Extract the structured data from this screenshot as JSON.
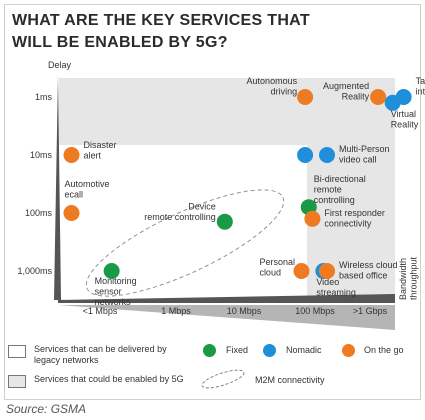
{
  "title": "WHAT ARE THE KEY SERVICES THAT WILL BE ENABLED BY 5G?",
  "source": "Source: GSMA",
  "colors": {
    "fixed": "#1a9a46",
    "nomadic": "#1f8fdc",
    "on_the_go": "#ee7a22",
    "legacy_region": "#ffffff",
    "new_region": "#e6e6e6",
    "axis": "#555555"
  },
  "legend": {
    "legacy": "Services that can be delivered by legacy networks",
    "new": "Services that could be enabled by 5G",
    "fixed": "Fixed",
    "nomadic": "Nomadic",
    "on_the_go": "On the go",
    "m2m": "M2M connectivity"
  },
  "chart_data": {
    "type": "scatter",
    "title": "WHAT ARE THE KEY SERVICES THAT WILL BE ENABLED BY 5G?",
    "xlabel": "Bandwidth throughput",
    "ylabel": "Delay",
    "x_categories": [
      "<1 Mbps",
      "1 Mbps",
      "10 Mbps",
      "100 Mbps",
      ">1 Gbps"
    ],
    "y_categories": [
      "1ms",
      "10ms",
      "100ms",
      "1,000ms"
    ],
    "grid": false,
    "legend_position": "bottom",
    "points": [
      {
        "label": "Autonomous driving",
        "type": "on_the_go",
        "x": 2.7,
        "y": 0.0
      },
      {
        "label": "Augmented Reality",
        "type": "on_the_go",
        "x": 3.7,
        "y": 0.0
      },
      {
        "label": "Tactile internet",
        "type": "nomadic",
        "x": 4.05,
        "y": 0.0
      },
      {
        "label": "Virtual Reality",
        "type": "nomadic",
        "x": 3.9,
        "y": 0.1
      },
      {
        "label": "Disaster alert",
        "type": "on_the_go",
        "x": -0.5,
        "y": 1.0
      },
      {
        "label": "",
        "type": "nomadic",
        "x": 2.7,
        "y": 1.0
      },
      {
        "label": "Multi-Person video call",
        "type": "nomadic",
        "x": 3.0,
        "y": 1.0
      },
      {
        "label": "Automotive ecall",
        "type": "on_the_go",
        "x": -0.5,
        "y": 2.0
      },
      {
        "label": "Device remote controlling",
        "type": "fixed",
        "x": 1.6,
        "y": 2.15
      },
      {
        "label": "Bi-directional remote controlling",
        "type": "fixed",
        "x": 2.75,
        "y": 1.9
      },
      {
        "label": "First responder connectivity",
        "type": "on_the_go",
        "x": 2.8,
        "y": 2.1
      },
      {
        "label": "Monitoring sensor networks",
        "type": "fixed",
        "x": 0.05,
        "y": 3.0
      },
      {
        "label": "Personal cloud",
        "type": "on_the_go",
        "x": 2.65,
        "y": 3.0
      },
      {
        "label": "Video streaming",
        "type": "nomadic",
        "x": 2.95,
        "y": 3.0
      },
      {
        "label": "Wireless cloud based office",
        "type": "on_the_go",
        "x": 3.0,
        "y": 3.0
      }
    ]
  }
}
